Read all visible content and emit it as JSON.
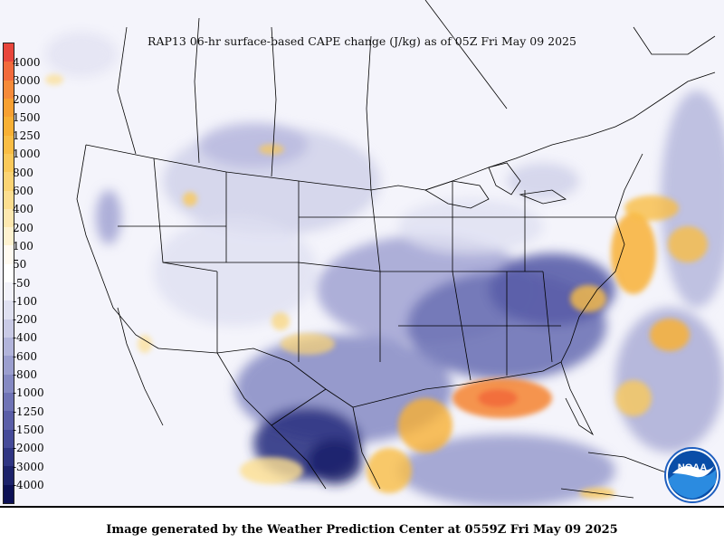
{
  "title": "RAP13 06-hr surface-based CAPE change (J/kg) as of 05Z Fri May 09 2025",
  "footer": "Image generated by the Weather Prediction Center at 0559Z Fri May 09 2025",
  "logo": {
    "text": "NOAA",
    "icon": "noaa-logo-icon"
  },
  "legend": {
    "labels": [
      "4000",
      "3000",
      "2000",
      "1500",
      "1250",
      "1000",
      "800",
      "600",
      "400",
      "200",
      "100",
      "50",
      "-50",
      "-100",
      "-200",
      "-400",
      "-600",
      "-800",
      "-1000",
      "-1250",
      "-1500",
      "-2000",
      "-3000",
      "-4000"
    ],
    "colors": [
      "#e8463c",
      "#f26a3c",
      "#f58a3a",
      "#f7a032",
      "#f8b035",
      "#f9bd45",
      "#fac95a",
      "#fbd474",
      "#fcde90",
      "#fde8b0",
      "#fef2d0",
      "#fffaf0",
      "#ffffff",
      "#f2f2fa",
      "#dfe0f1",
      "#c9cae6",
      "#b2b4db",
      "#9b9ecf",
      "#8589c3",
      "#6f73b6",
      "#5a5ea8",
      "#454a99",
      "#2f3583",
      "#1c226b",
      "#0c1055"
    ]
  }
}
